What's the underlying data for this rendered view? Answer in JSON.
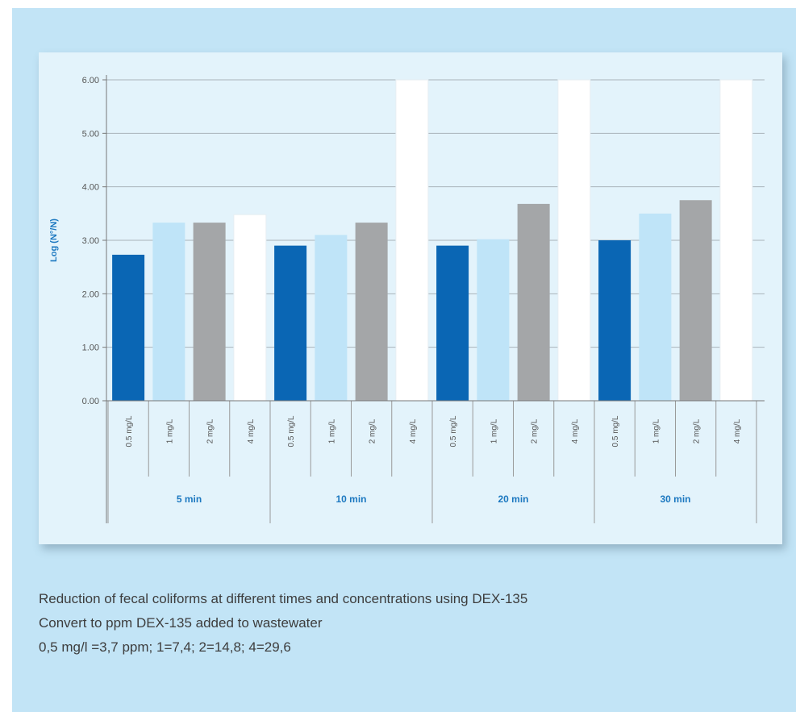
{
  "colors": {
    "series": [
      "#0a66b4",
      "#bfe4f8",
      "#a4a6a8",
      "#ffffff"
    ],
    "axis_label": "#1c78c0"
  },
  "chart_data": {
    "type": "bar",
    "ylabel": "Log (N°/N)",
    "ylim": [
      0,
      6
    ],
    "yticks": [
      "0.00",
      "1.00",
      "2.00",
      "3.00",
      "4.00",
      "5.00",
      "6.00"
    ],
    "grid": true,
    "groups": [
      "5 min",
      "10 min",
      "20 min",
      "30 min"
    ],
    "categories": [
      "0.5 mg/L",
      "1 mg/L",
      "2 mg/L",
      "4 mg/L"
    ],
    "series": [
      {
        "name": "0.5 mg/L",
        "values": [
          2.73,
          2.9,
          2.9,
          3.0
        ]
      },
      {
        "name": "1 mg/L",
        "values": [
          3.33,
          3.1,
          3.02,
          3.5
        ]
      },
      {
        "name": "2 mg/L",
        "values": [
          3.33,
          3.33,
          3.68,
          3.75
        ]
      },
      {
        "name": "4 mg/L",
        "values": [
          3.48,
          6.0,
          6.0,
          6.0
        ]
      }
    ]
  },
  "caption": {
    "line1": "Reduction of fecal coliforms at different times and concentrations using DEX-135",
    "line2": "Convert to ppm DEX-135 added to wastewater",
    "line3": "0,5 mg/l =3,7 ppm;  1=7,4;  2=14,8;  4=29,6"
  }
}
